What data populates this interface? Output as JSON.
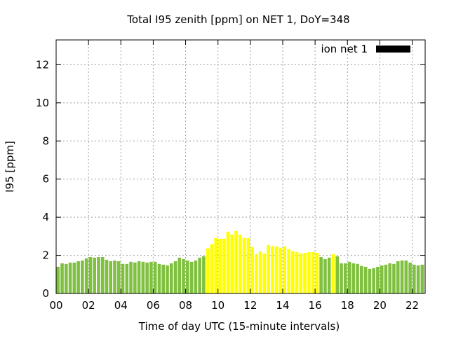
{
  "chart_data": {
    "type": "bar",
    "title": "Total I95 zenith [ppm] on NET 1, DoY=348",
    "xlabel": "Time of day UTC (15-minute intervals)",
    "ylabel": "I95 [ppm]",
    "xlim": [
      0,
      22.8
    ],
    "ylim": [
      0,
      13.3
    ],
    "xticks": [
      0,
      2,
      4,
      6,
      8,
      10,
      12,
      14,
      16,
      18,
      20,
      22
    ],
    "xtick_labels": [
      "00",
      "02",
      "04",
      "06",
      "08",
      "10",
      "12",
      "14",
      "16",
      "18",
      "20",
      "22"
    ],
    "yticks": [
      0,
      2,
      4,
      6,
      8,
      10,
      12
    ],
    "ytick_labels": [
      "0",
      "2",
      "4",
      "6",
      "8",
      "10",
      "12"
    ],
    "grid": true,
    "legend": {
      "label": "ion net 1",
      "placement": "top-right",
      "color": "#000000"
    },
    "interval_hours": 0.25,
    "colors": {
      "normal": "#80c040",
      "elevated": "#ffff00"
    },
    "values": [
      1.4,
      1.58,
      1.55,
      1.62,
      1.62,
      1.69,
      1.73,
      1.84,
      1.91,
      1.88,
      1.91,
      1.91,
      1.77,
      1.69,
      1.73,
      1.69,
      1.55,
      1.55,
      1.66,
      1.62,
      1.69,
      1.66,
      1.62,
      1.66,
      1.66,
      1.55,
      1.51,
      1.47,
      1.58,
      1.69,
      1.88,
      1.8,
      1.73,
      1.66,
      1.73,
      1.88,
      1.95,
      2.36,
      2.58,
      2.91,
      2.87,
      2.87,
      3.24,
      3.09,
      3.28,
      3.09,
      2.91,
      2.91,
      2.43,
      2.06,
      2.21,
      2.1,
      2.54,
      2.5,
      2.47,
      2.39,
      2.47,
      2.32,
      2.21,
      2.17,
      2.1,
      2.13,
      2.17,
      2.17,
      2.13,
      1.91,
      1.8,
      1.88,
      2.06,
      1.95,
      1.58,
      1.58,
      1.66,
      1.58,
      1.55,
      1.44,
      1.4,
      1.29,
      1.33,
      1.4,
      1.47,
      1.51,
      1.58,
      1.55,
      1.69,
      1.73,
      1.73,
      1.62,
      1.51,
      1.47,
      1.51,
      1.51
    ],
    "elevated": [
      0,
      0,
      0,
      0,
      0,
      0,
      0,
      0,
      0,
      0,
      0,
      0,
      0,
      0,
      0,
      0,
      0,
      0,
      0,
      0,
      0,
      0,
      0,
      0,
      0,
      0,
      0,
      0,
      0,
      0,
      0,
      0,
      0,
      0,
      0,
      0,
      0,
      1,
      1,
      1,
      1,
      1,
      1,
      1,
      1,
      1,
      1,
      1,
      1,
      1,
      1,
      1,
      1,
      1,
      1,
      1,
      1,
      1,
      1,
      1,
      1,
      1,
      1,
      1,
      1,
      0,
      0,
      0,
      1,
      0,
      0,
      0,
      0,
      0,
      0,
      0,
      0,
      0,
      0,
      0,
      0,
      0,
      0,
      0,
      0,
      0,
      0,
      0,
      0,
      0,
      0,
      0
    ]
  }
}
